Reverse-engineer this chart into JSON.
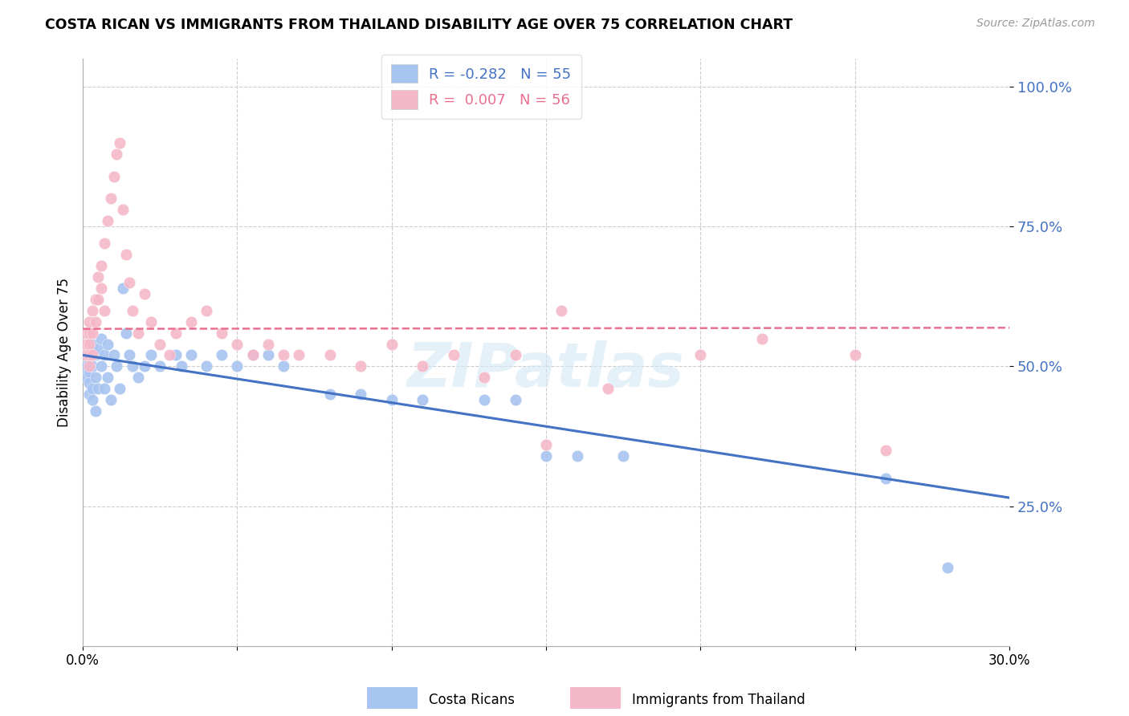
{
  "title": "COSTA RICAN VS IMMIGRANTS FROM THAILAND DISABILITY AGE OVER 75 CORRELATION CHART",
  "source": "Source: ZipAtlas.com",
  "ylabel": "Disability Age Over 75",
  "xlim": [
    0.0,
    0.3
  ],
  "ylim": [
    0.0,
    1.05
  ],
  "legend_blue_r": "R = -0.282",
  "legend_blue_n": "N = 55",
  "legend_pink_r": "R =  0.007",
  "legend_pink_n": "N = 56",
  "blue_color": "#a8c4f0",
  "pink_color": "#f5b8c8",
  "blue_line_color": "#4472c4",
  "pink_line_color": "#e87090",
  "right_tick_color": "#4472c4",
  "watermark_color": "#d5e8f5",
  "blue_points_x": [
    0.001,
    0.001,
    0.001,
    0.002,
    0.002,
    0.002,
    0.002,
    0.002,
    0.003,
    0.003,
    0.003,
    0.003,
    0.004,
    0.004,
    0.004,
    0.005,
    0.005,
    0.006,
    0.006,
    0.007,
    0.007,
    0.008,
    0.008,
    0.009,
    0.01,
    0.011,
    0.012,
    0.013,
    0.014,
    0.015,
    0.016,
    0.018,
    0.02,
    0.022,
    0.025,
    0.03,
    0.032,
    0.035,
    0.04,
    0.045,
    0.05,
    0.055,
    0.06,
    0.065,
    0.08,
    0.09,
    0.1,
    0.11,
    0.13,
    0.14,
    0.15,
    0.16,
    0.175,
    0.26,
    0.28
  ],
  "blue_points_y": [
    0.52,
    0.5,
    0.48,
    0.53,
    0.51,
    0.49,
    0.47,
    0.45,
    0.54,
    0.5,
    0.46,
    0.44,
    0.52,
    0.48,
    0.42,
    0.53,
    0.46,
    0.55,
    0.5,
    0.52,
    0.46,
    0.54,
    0.48,
    0.44,
    0.52,
    0.5,
    0.46,
    0.64,
    0.56,
    0.52,
    0.5,
    0.48,
    0.5,
    0.52,
    0.5,
    0.52,
    0.5,
    0.52,
    0.5,
    0.52,
    0.5,
    0.52,
    0.52,
    0.5,
    0.45,
    0.45,
    0.44,
    0.44,
    0.44,
    0.44,
    0.34,
    0.34,
    0.34,
    0.3,
    0.14
  ],
  "pink_points_x": [
    0.001,
    0.001,
    0.001,
    0.002,
    0.002,
    0.002,
    0.002,
    0.002,
    0.003,
    0.003,
    0.003,
    0.004,
    0.004,
    0.005,
    0.005,
    0.006,
    0.006,
    0.007,
    0.007,
    0.008,
    0.009,
    0.01,
    0.011,
    0.012,
    0.013,
    0.014,
    0.015,
    0.016,
    0.018,
    0.02,
    0.022,
    0.025,
    0.028,
    0.03,
    0.035,
    0.04,
    0.045,
    0.05,
    0.055,
    0.06,
    0.065,
    0.07,
    0.08,
    0.09,
    0.1,
    0.11,
    0.12,
    0.13,
    0.14,
    0.15,
    0.155,
    0.17,
    0.2,
    0.22,
    0.25,
    0.26
  ],
  "pink_points_y": [
    0.56,
    0.54,
    0.52,
    0.58,
    0.56,
    0.54,
    0.52,
    0.5,
    0.6,
    0.56,
    0.52,
    0.62,
    0.58,
    0.66,
    0.62,
    0.68,
    0.64,
    0.72,
    0.6,
    0.76,
    0.8,
    0.84,
    0.88,
    0.9,
    0.78,
    0.7,
    0.65,
    0.6,
    0.56,
    0.63,
    0.58,
    0.54,
    0.52,
    0.56,
    0.58,
    0.6,
    0.56,
    0.54,
    0.52,
    0.54,
    0.52,
    0.52,
    0.52,
    0.5,
    0.54,
    0.5,
    0.52,
    0.48,
    0.52,
    0.36,
    0.6,
    0.46,
    0.52,
    0.55,
    0.52,
    0.35
  ],
  "blue_trendline_x": [
    0.0,
    0.3
  ],
  "blue_trendline_y": [
    0.52,
    0.265
  ],
  "pink_trendline_x": [
    0.0,
    0.3
  ],
  "pink_trendline_y": [
    0.567,
    0.569
  ]
}
